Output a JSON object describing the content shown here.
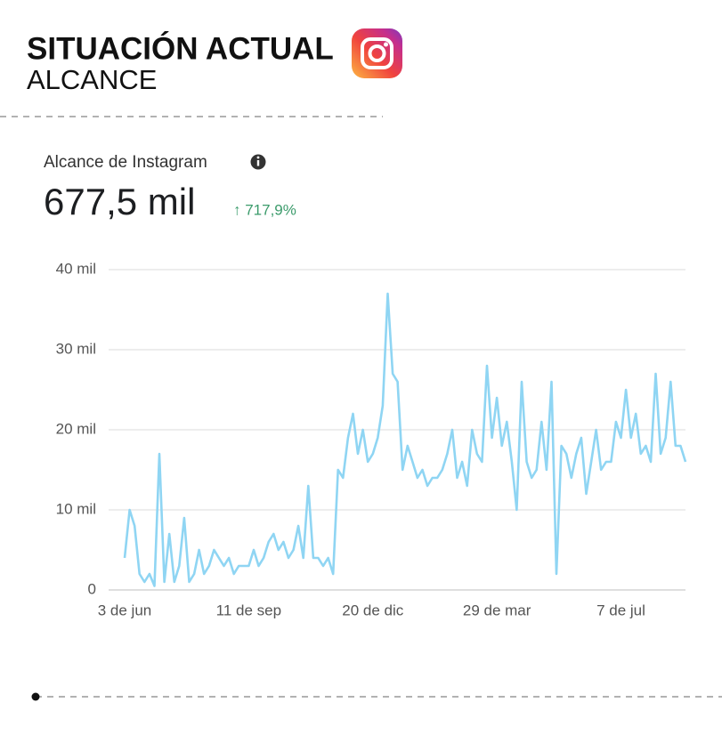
{
  "header": {
    "title": "SITUACIÓN ACTUAL",
    "subtitle": "ALCANCE"
  },
  "chart_data": {
    "type": "line",
    "title": "Alcance de Instagram",
    "total": "677,5 mil",
    "change": "↑ 717,9%",
    "color": "#8fd5f3",
    "grid": true,
    "values": [
      4,
      10,
      8,
      2,
      1,
      2,
      0.5,
      17,
      1,
      7,
      1,
      3,
      9,
      1,
      2,
      5,
      2,
      3,
      5,
      4,
      3,
      4,
      2,
      3,
      3,
      3,
      5,
      3,
      4,
      6,
      7,
      5,
      6,
      4,
      5,
      8,
      4,
      13,
      4,
      4,
      3,
      4,
      2,
      15,
      14,
      19,
      22,
      17,
      20,
      16,
      17,
      19,
      23,
      37,
      27,
      26,
      15,
      18,
      16,
      14,
      15,
      13,
      14,
      14,
      15,
      17,
      20,
      14,
      16,
      13,
      20,
      17,
      16,
      28,
      19,
      24,
      18,
      21,
      16,
      10,
      26,
      16,
      14,
      15,
      21,
      15,
      26,
      2,
      18,
      17,
      14,
      17,
      19,
      12,
      16,
      20,
      15,
      16,
      16,
      21,
      19,
      25,
      19,
      22,
      17,
      18,
      16,
      27,
      17,
      19,
      26,
      18,
      18,
      16
    ],
    "xlim": [
      0,
      113
    ],
    "xticks": [
      {
        "value": 0,
        "label": "3 de jun"
      },
      {
        "value": 25,
        "label": "11 de sep"
      },
      {
        "value": 50,
        "label": "20 de dic"
      },
      {
        "value": 75,
        "label": "29 de mar"
      },
      {
        "value": 100,
        "label": "7 de jul"
      }
    ],
    "ylim": [
      0,
      40
    ],
    "yticks": [
      0,
      {
        "value": 10,
        "label": "10 mil"
      },
      {
        "value": 20,
        "label": "20 mil"
      },
      {
        "value": 30,
        "label": "30 mil"
      },
      {
        "value": 40,
        "label": "40 mil"
      }
    ]
  }
}
